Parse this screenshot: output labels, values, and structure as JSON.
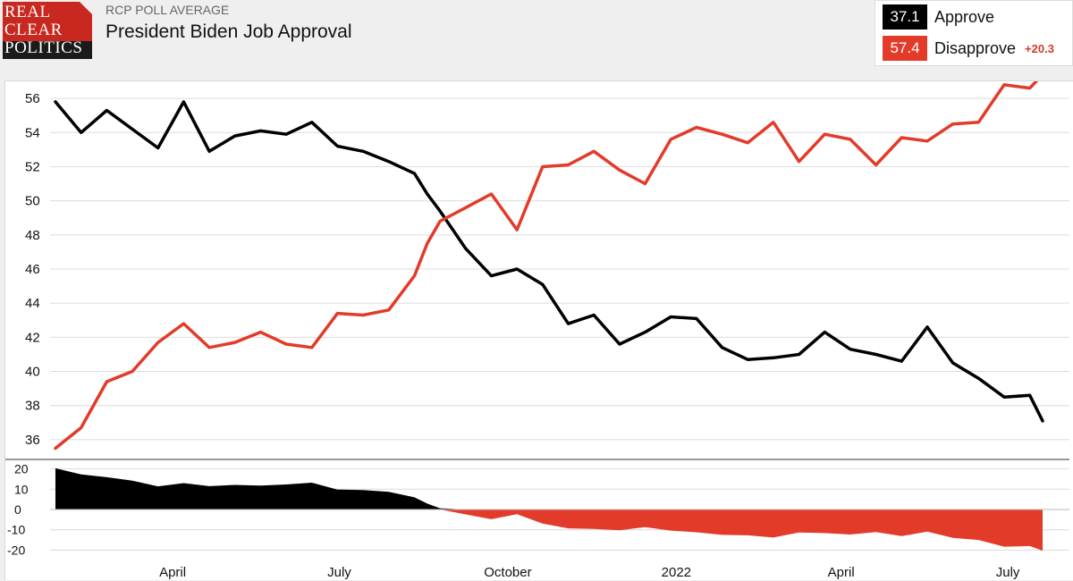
{
  "header": {
    "logo_lines": [
      "REAL",
      "CLEAR",
      "POLITICS"
    ],
    "subtitle": "RCP POLL AVERAGE",
    "title": "President Biden Job Approval"
  },
  "legend": {
    "approve_value": "37.1",
    "approve_label": "Approve",
    "disapprove_value": "57.4",
    "disapprove_label": "Disapprove",
    "spread": "+20.3"
  },
  "colors": {
    "approve": "#000000",
    "disapprove": "#e23b2a",
    "brand": "#c8281f"
  },
  "chart_data": [
    {
      "type": "line",
      "series": [
        {
          "name": "Approve",
          "color": "#000000",
          "x": [
            "2021-01-27",
            "2021-02-10",
            "2021-02-24",
            "2021-03-10",
            "2021-03-24",
            "2021-04-07",
            "2021-04-21",
            "2021-05-05",
            "2021-05-19",
            "2021-06-02",
            "2021-06-16",
            "2021-06-30",
            "2021-07-14",
            "2021-07-28",
            "2021-08-11",
            "2021-08-18",
            "2021-08-25",
            "2021-09-08",
            "2021-09-22",
            "2021-10-06",
            "2021-10-20",
            "2021-11-03",
            "2021-11-17",
            "2021-12-01",
            "2021-12-15",
            "2021-12-29",
            "2022-01-12",
            "2022-01-26",
            "2022-02-09",
            "2022-02-23",
            "2022-03-09",
            "2022-03-23",
            "2022-04-06",
            "2022-04-20",
            "2022-05-04",
            "2022-05-18",
            "2022-06-01",
            "2022-06-15",
            "2022-06-29",
            "2022-07-13",
            "2022-07-20"
          ],
          "values": [
            55.8,
            54.0,
            55.3,
            54.2,
            53.1,
            55.8,
            52.9,
            53.8,
            54.1,
            53.9,
            54.6,
            53.2,
            52.9,
            52.3,
            51.6,
            50.4,
            49.4,
            47.2,
            45.6,
            46.0,
            45.1,
            42.8,
            43.3,
            41.6,
            42.3,
            43.2,
            43.1,
            41.4,
            40.7,
            40.8,
            41.0,
            42.3,
            41.3,
            41.0,
            40.6,
            42.6,
            40.5,
            39.6,
            38.5,
            38.6,
            37.1
          ]
        },
        {
          "name": "Disapprove",
          "color": "#e23b2a",
          "x": [
            "2021-01-27",
            "2021-02-10",
            "2021-02-24",
            "2021-03-10",
            "2021-03-24",
            "2021-04-07",
            "2021-04-21",
            "2021-05-05",
            "2021-05-19",
            "2021-06-02",
            "2021-06-16",
            "2021-06-30",
            "2021-07-14",
            "2021-07-28",
            "2021-08-11",
            "2021-08-18",
            "2021-08-25",
            "2021-09-08",
            "2021-09-22",
            "2021-10-06",
            "2021-10-20",
            "2021-11-03",
            "2021-11-17",
            "2021-12-01",
            "2021-12-15",
            "2021-12-29",
            "2022-01-12",
            "2022-01-26",
            "2022-02-09",
            "2022-02-23",
            "2022-03-09",
            "2022-03-23",
            "2022-04-06",
            "2022-04-20",
            "2022-05-04",
            "2022-05-18",
            "2022-06-01",
            "2022-06-15",
            "2022-06-29",
            "2022-07-13",
            "2022-07-20"
          ],
          "values": [
            35.5,
            36.7,
            39.4,
            40.0,
            41.7,
            42.8,
            41.4,
            41.7,
            42.3,
            41.6,
            41.4,
            43.4,
            43.3,
            43.6,
            45.6,
            47.5,
            48.8,
            49.6,
            50.4,
            48.3,
            52.0,
            52.1,
            52.9,
            51.8,
            51.0,
            53.6,
            54.3,
            53.9,
            53.4,
            54.6,
            52.3,
            53.9,
            53.6,
            52.1,
            53.7,
            53.5,
            54.5,
            54.6,
            56.8,
            56.6,
            57.4
          ]
        }
      ],
      "ylim": [
        35,
        57
      ],
      "yticks": [
        36,
        38,
        40,
        42,
        44,
        46,
        48,
        50,
        52,
        54,
        56
      ],
      "grid": true
    },
    {
      "type": "area",
      "series": [
        {
          "name": "Spread",
          "x": [
            "2021-01-27",
            "2021-02-10",
            "2021-02-24",
            "2021-03-10",
            "2021-03-24",
            "2021-04-07",
            "2021-04-21",
            "2021-05-05",
            "2021-05-19",
            "2021-06-02",
            "2021-06-16",
            "2021-06-30",
            "2021-07-14",
            "2021-07-28",
            "2021-08-11",
            "2021-08-18",
            "2021-08-25",
            "2021-09-08",
            "2021-09-22",
            "2021-10-06",
            "2021-10-20",
            "2021-11-03",
            "2021-11-17",
            "2021-12-01",
            "2021-12-15",
            "2021-12-29",
            "2022-01-12",
            "2022-01-26",
            "2022-02-09",
            "2022-02-23",
            "2022-03-09",
            "2022-03-23",
            "2022-04-06",
            "2022-04-20",
            "2022-05-04",
            "2022-05-18",
            "2022-06-01",
            "2022-06-15",
            "2022-06-29",
            "2022-07-13",
            "2022-07-20"
          ],
          "values": [
            20.3,
            17.3,
            15.9,
            14.2,
            11.4,
            13.0,
            11.5,
            12.1,
            11.8,
            12.3,
            13.2,
            9.8,
            9.6,
            8.7,
            6.0,
            2.9,
            0.6,
            -2.4,
            -4.8,
            -2.3,
            -6.9,
            -9.3,
            -9.6,
            -10.2,
            -8.7,
            -10.4,
            -11.2,
            -12.5,
            -12.7,
            -13.8,
            -11.3,
            -11.6,
            -12.3,
            -11.1,
            -13.1,
            -10.9,
            -14.0,
            -15.0,
            -18.3,
            -18.0,
            -20.3
          ]
        }
      ],
      "ylim": [
        -22,
        22
      ],
      "yticks": [
        20,
        10,
        0,
        -10,
        -20
      ]
    }
  ],
  "x_axis": {
    "ticks": [
      {
        "label": "April",
        "date": "2021-04-01"
      },
      {
        "label": "July",
        "date": "2021-07-01"
      },
      {
        "label": "October",
        "date": "2021-10-01"
      },
      {
        "label": "2022",
        "date": "2022-01-01"
      },
      {
        "label": "April",
        "date": "2022-04-01"
      },
      {
        "label": "July",
        "date": "2022-07-01"
      }
    ]
  }
}
